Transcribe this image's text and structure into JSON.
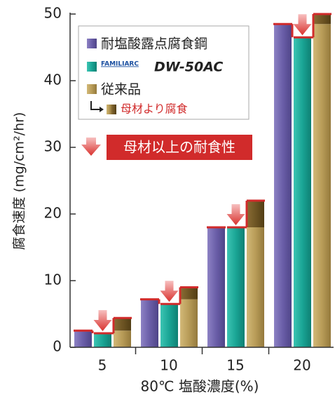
{
  "chart_data": {
    "type": "bar",
    "ylabel": "腐食速度 (mg/cm²/hr)",
    "xlabel": "80℃ 塩酸濃度(%)",
    "annotation": "母材以上の耐食性",
    "categories": [
      "5",
      "10",
      "15",
      "20"
    ],
    "series": [
      {
        "name": "耐塩酸露点腐食鋼",
        "color": "#6a5ea8",
        "values": [
          2.5,
          7.2,
          18,
          48.5
        ]
      },
      {
        "name": "DW-50AC",
        "brand": "FAMILIARC",
        "color": "#1aa595",
        "values": [
          2.1,
          6.5,
          18,
          46.5
        ]
      },
      {
        "name": "従来品",
        "color": "#b89c58",
        "values": [
          2.5,
          7.2,
          18,
          48.5
        ]
      },
      {
        "name": "母材より腐食",
        "color": "#6e5524",
        "values": [
          1.9,
          1.8,
          4,
          1.5
        ],
        "stacked": true
      }
    ],
    "ylim": [
      0,
      50
    ],
    "yticks": [
      0,
      10,
      20,
      30,
      40,
      50
    ]
  }
}
